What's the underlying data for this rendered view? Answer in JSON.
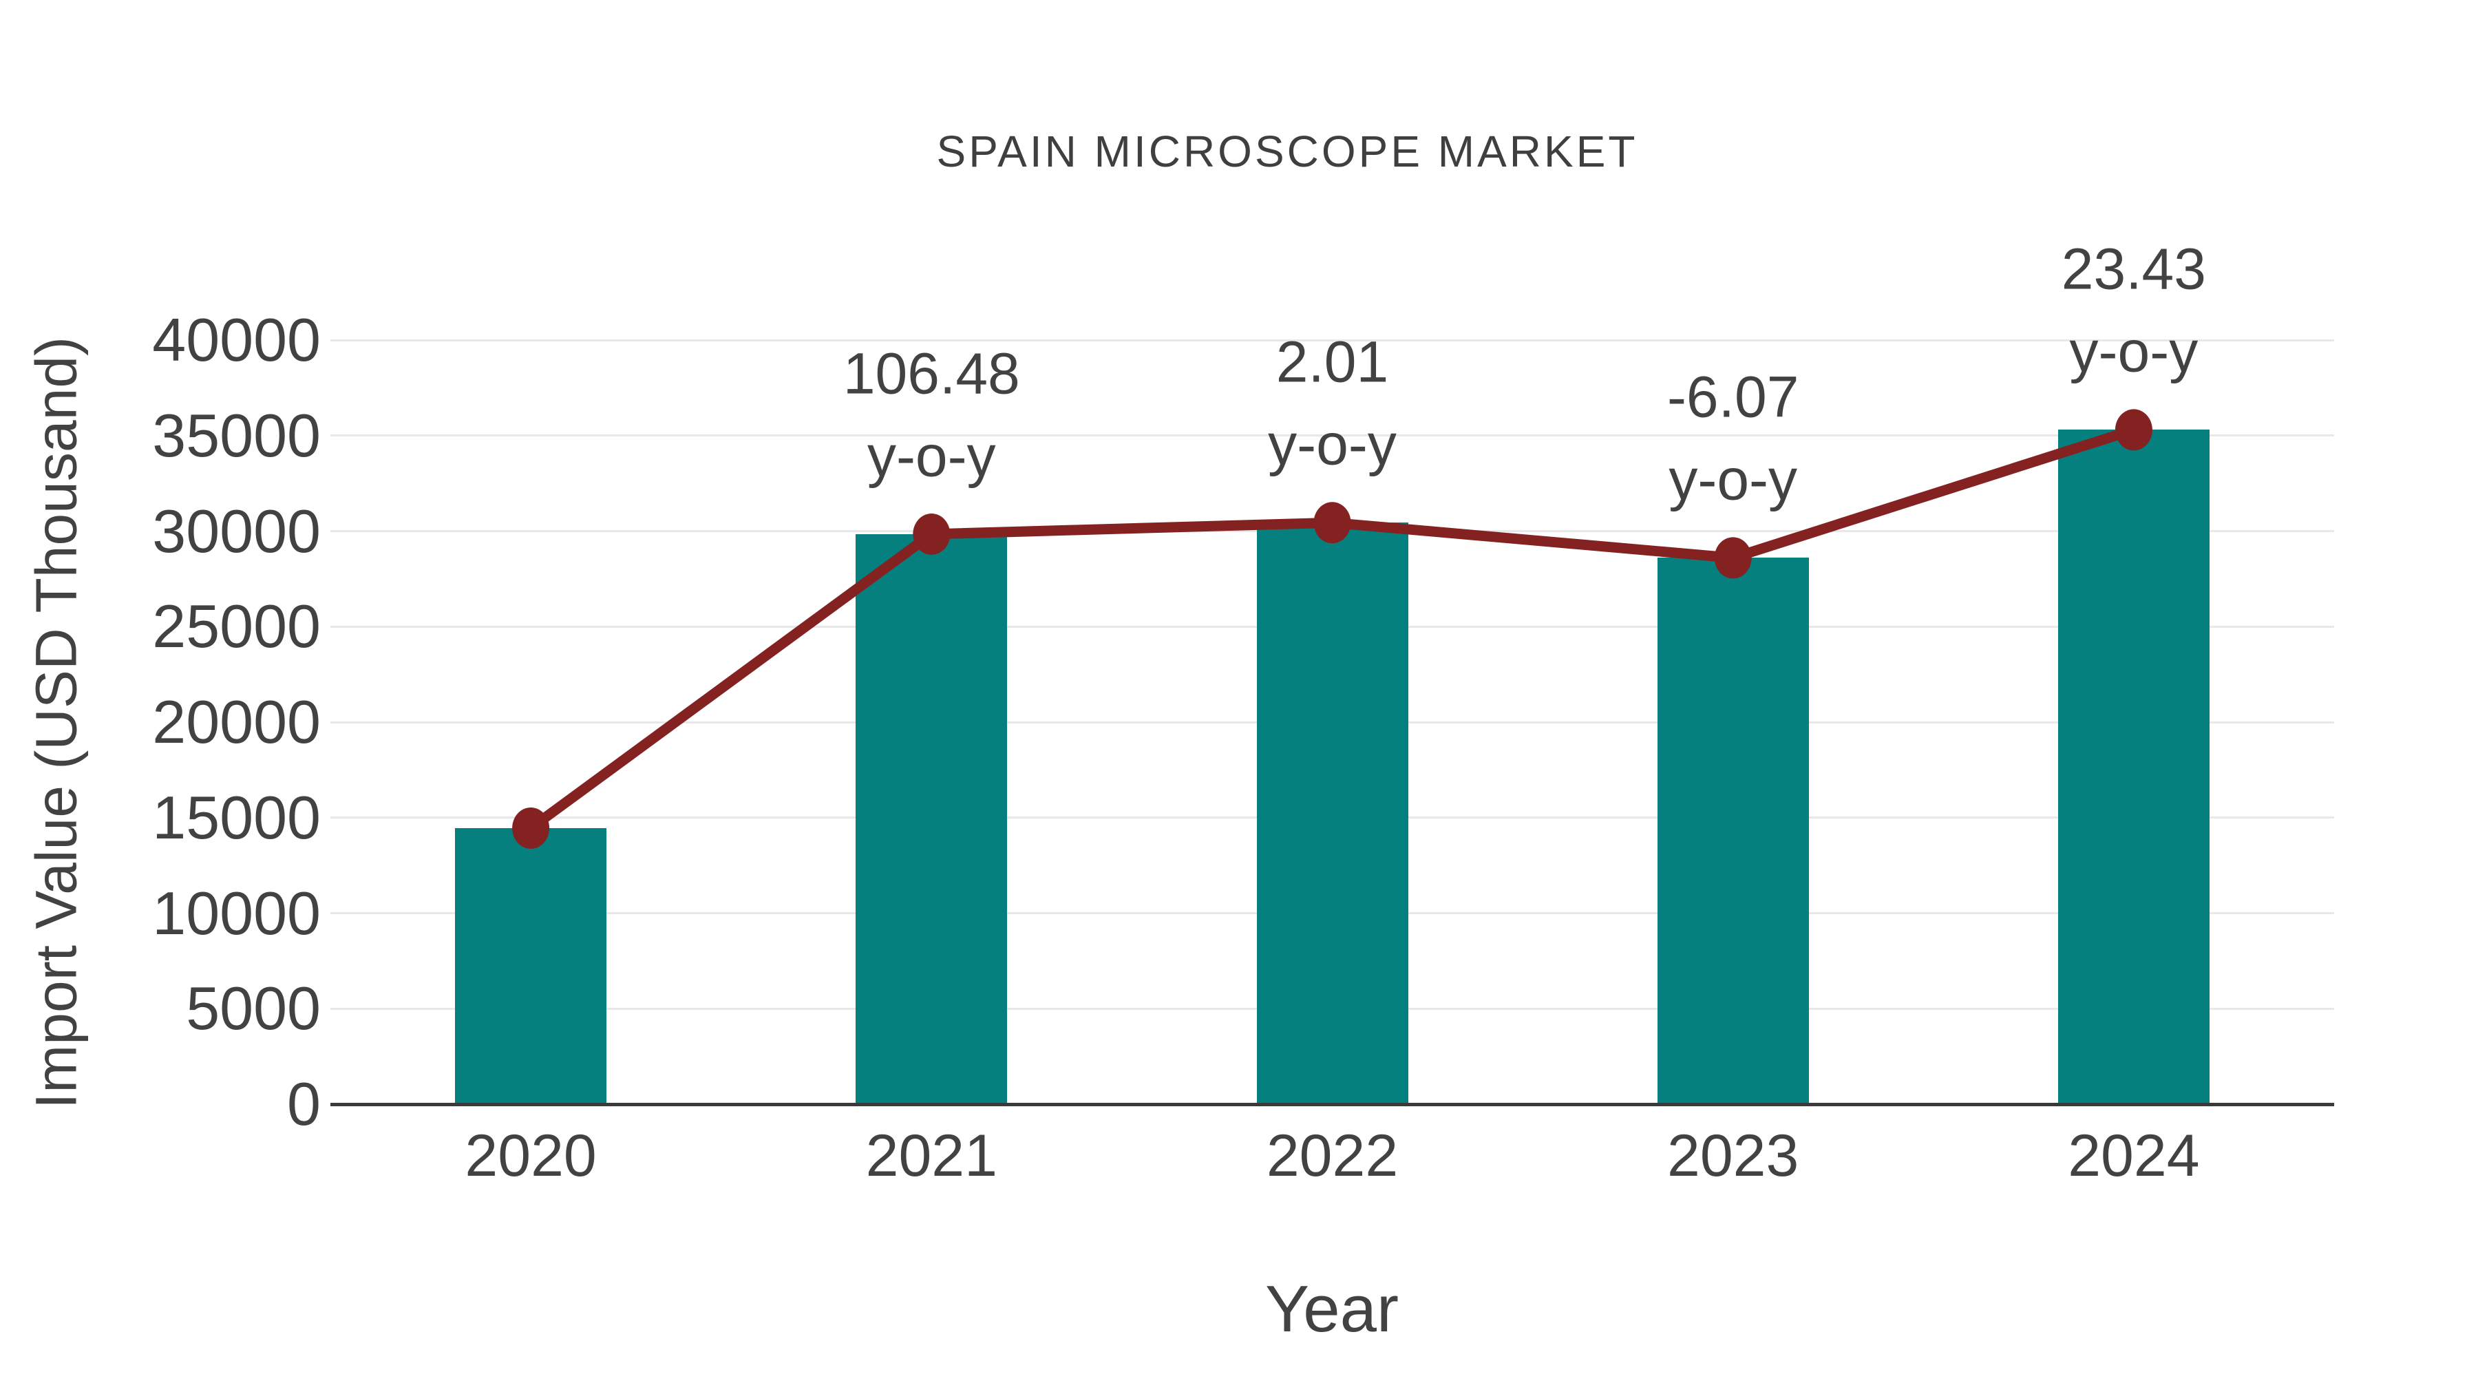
{
  "title": "SPAIN MICROSCOPE MARKET",
  "colors": {
    "bar": "#067f7f",
    "line": "#842222",
    "marker": "#842222",
    "text": "#424242",
    "grid": "#e8e8e8",
    "axis": "#3a3a3a",
    "background": "#ffffff"
  },
  "chart_data": {
    "type": "bar",
    "title": "SPAIN MICROSCOPE MARKET",
    "xlabel": "Year",
    "ylabel": "Import Value (USD Thousand)",
    "categories": [
      "2020",
      "2021",
      "2022",
      "2023",
      "2024"
    ],
    "series": [
      {
        "name": "Import Value bars",
        "type": "bar",
        "values": [
          14450,
          29840,
          30440,
          28600,
          35300
        ]
      },
      {
        "name": "Import Value line",
        "type": "line",
        "values": [
          14450,
          29840,
          30440,
          28600,
          35300
        ]
      }
    ],
    "annotations": [
      {
        "category": "2021",
        "line1": "106.48",
        "line2": "y-o-y"
      },
      {
        "category": "2022",
        "line1": "2.01",
        "line2": "y-o-y"
      },
      {
        "category": "2023",
        "line1": "-6.07",
        "line2": "y-o-y"
      },
      {
        "category": "2024",
        "line1": "23.43",
        "line2": "y-o-y"
      }
    ],
    "yticks": [
      0,
      5000,
      10000,
      15000,
      20000,
      25000,
      30000,
      35000,
      40000
    ],
    "ylim": [
      0,
      40000
    ],
    "grid": "horizontal",
    "legend": "none"
  }
}
